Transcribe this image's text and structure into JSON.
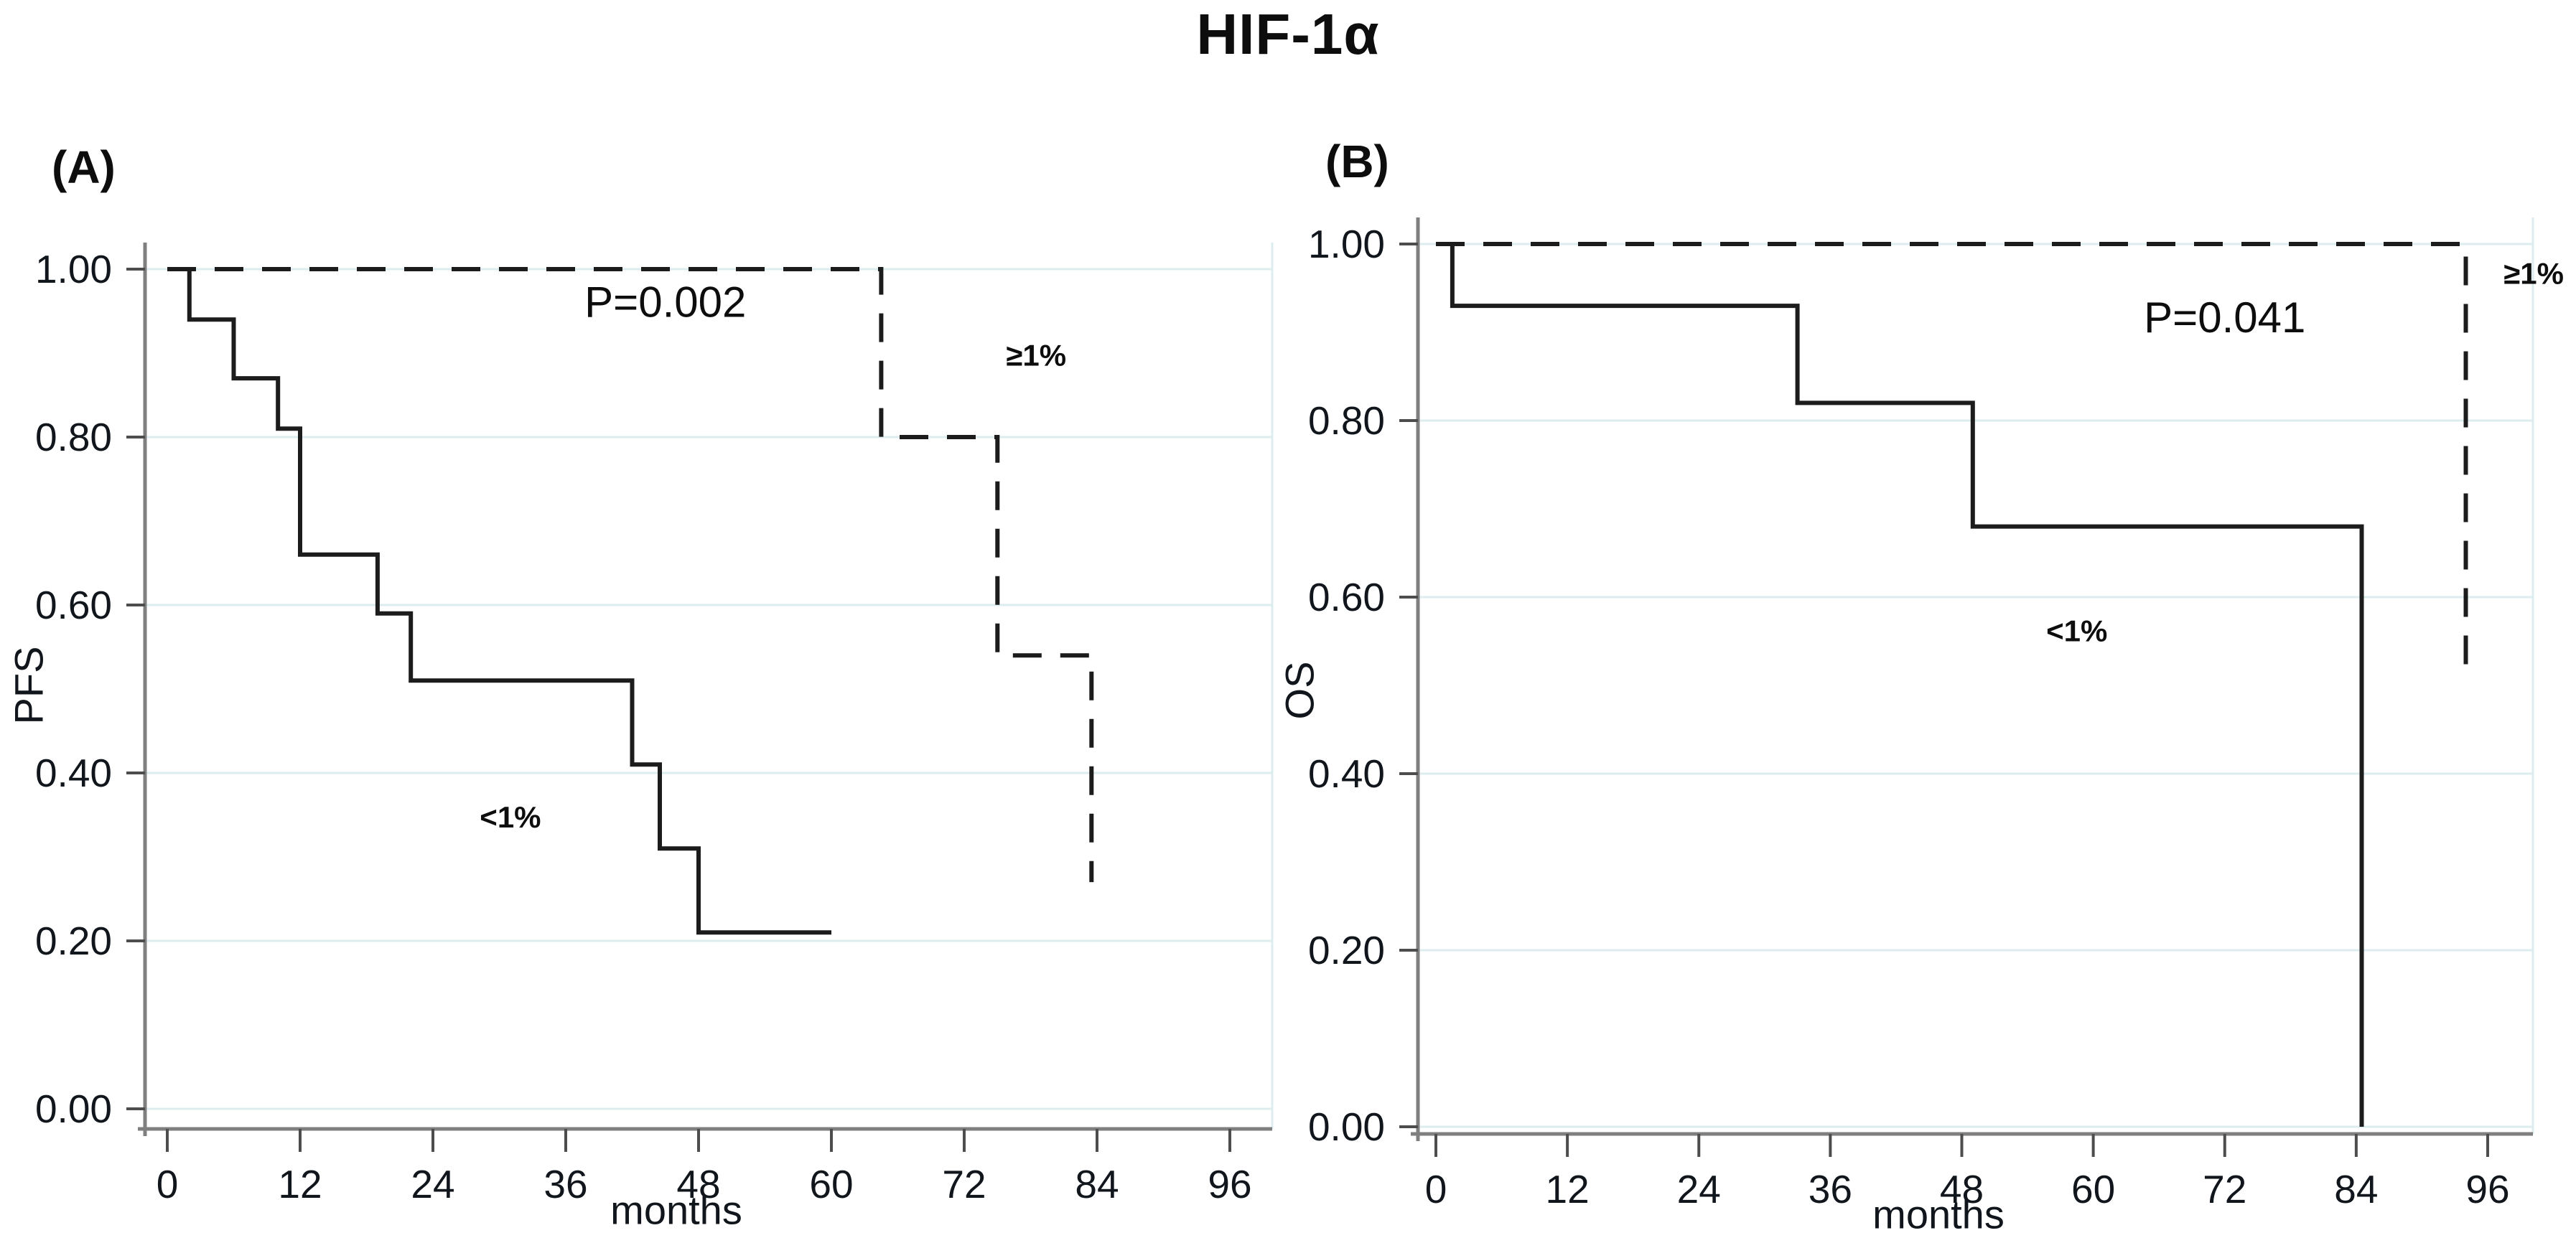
{
  "title": "HIF-1α",
  "chart_data": [
    {
      "type": "line",
      "subtype": "kaplan-meier-step",
      "panel_label": "(A)",
      "ylabel": "PFS",
      "xlabel": "months",
      "xlim": [
        0,
        96
      ],
      "ylim": [
        0,
        1
      ],
      "xticks": [
        0,
        12,
        24,
        36,
        48,
        60,
        72,
        84,
        96
      ],
      "yticks": [
        1.0,
        0.8,
        0.6,
        0.4,
        0.2,
        0.0
      ],
      "grid": "horizontal",
      "legend_position": "inline-annotations",
      "series": [
        {
          "name": "<1%",
          "style": "solid",
          "points": [
            [
              0,
              1.0
            ],
            [
              2,
              1.0
            ],
            [
              2,
              0.94
            ],
            [
              6,
              0.94
            ],
            [
              6,
              0.87
            ],
            [
              10,
              0.87
            ],
            [
              10,
              0.81
            ],
            [
              12,
              0.81
            ],
            [
              12,
              0.66
            ],
            [
              19,
              0.66
            ],
            [
              19,
              0.59
            ],
            [
              22,
              0.59
            ],
            [
              22,
              0.51
            ],
            [
              42,
              0.51
            ],
            [
              42,
              0.41
            ],
            [
              44.5,
              0.41
            ],
            [
              44.5,
              0.31
            ],
            [
              48,
              0.31
            ],
            [
              48,
              0.21
            ],
            [
              60,
              0.21
            ]
          ]
        },
        {
          "name": "≥1%",
          "style": "dashed",
          "points": [
            [
              0,
              1.0
            ],
            [
              64.5,
              1.0
            ],
            [
              64.5,
              0.8
            ],
            [
              75,
              0.8
            ],
            [
              75,
              0.54
            ],
            [
              83.5,
              0.54
            ],
            [
              83.5,
              0.27
            ]
          ]
        }
      ],
      "annotations": [
        {
          "text": "P=0.002",
          "x": 45,
          "y": 0.943,
          "fs": 60,
          "bold": false
        },
        {
          "text": "≥1%",
          "x": 78.5,
          "y": 0.885,
          "fs": 42,
          "bold": true
        },
        {
          "text": "<1%",
          "x": 31,
          "y": 0.335,
          "fs": 42,
          "bold": true
        }
      ]
    },
    {
      "type": "line",
      "subtype": "kaplan-meier-step",
      "panel_label": "(B)",
      "ylabel": "OS",
      "xlabel": "months",
      "xlim": [
        0,
        96
      ],
      "ylim": [
        0,
        1
      ],
      "xticks": [
        0,
        12,
        24,
        36,
        48,
        60,
        72,
        84,
        96
      ],
      "yticks": [
        1.0,
        0.8,
        0.6,
        0.4,
        0.2,
        0.0
      ],
      "grid": "horizontal",
      "legend_position": "inline-annotations",
      "series": [
        {
          "name": "<1%",
          "style": "solid",
          "points": [
            [
              0,
              1.0
            ],
            [
              1.5,
              1.0
            ],
            [
              1.5,
              0.93
            ],
            [
              33,
              0.93
            ],
            [
              33,
              0.82
            ],
            [
              49,
              0.82
            ],
            [
              49,
              0.68
            ],
            [
              84.5,
              0.68
            ],
            [
              84.5,
              0.0
            ]
          ]
        },
        {
          "name": "≥1%",
          "style": "dashed",
          "points": [
            [
              0,
              1.0
            ],
            [
              94,
              1.0
            ],
            [
              94,
              0.51
            ]
          ]
        }
      ],
      "annotations": [
        {
          "text": "P=0.041",
          "x": 72,
          "y": 0.9,
          "fs": 60,
          "bold": false
        },
        {
          "text": "≥1%",
          "x": 100.2,
          "y": 0.955,
          "fs": 42,
          "bold": true
        },
        {
          "text": "<1%",
          "x": 58.5,
          "y": 0.55,
          "fs": 42,
          "bold": true
        }
      ]
    }
  ],
  "colors": {
    "curve": "#1c1c1c",
    "axis": "#7f7f7f",
    "tick": "#4d4d4d",
    "grid": "#dcecef",
    "text": "#10161c"
  }
}
